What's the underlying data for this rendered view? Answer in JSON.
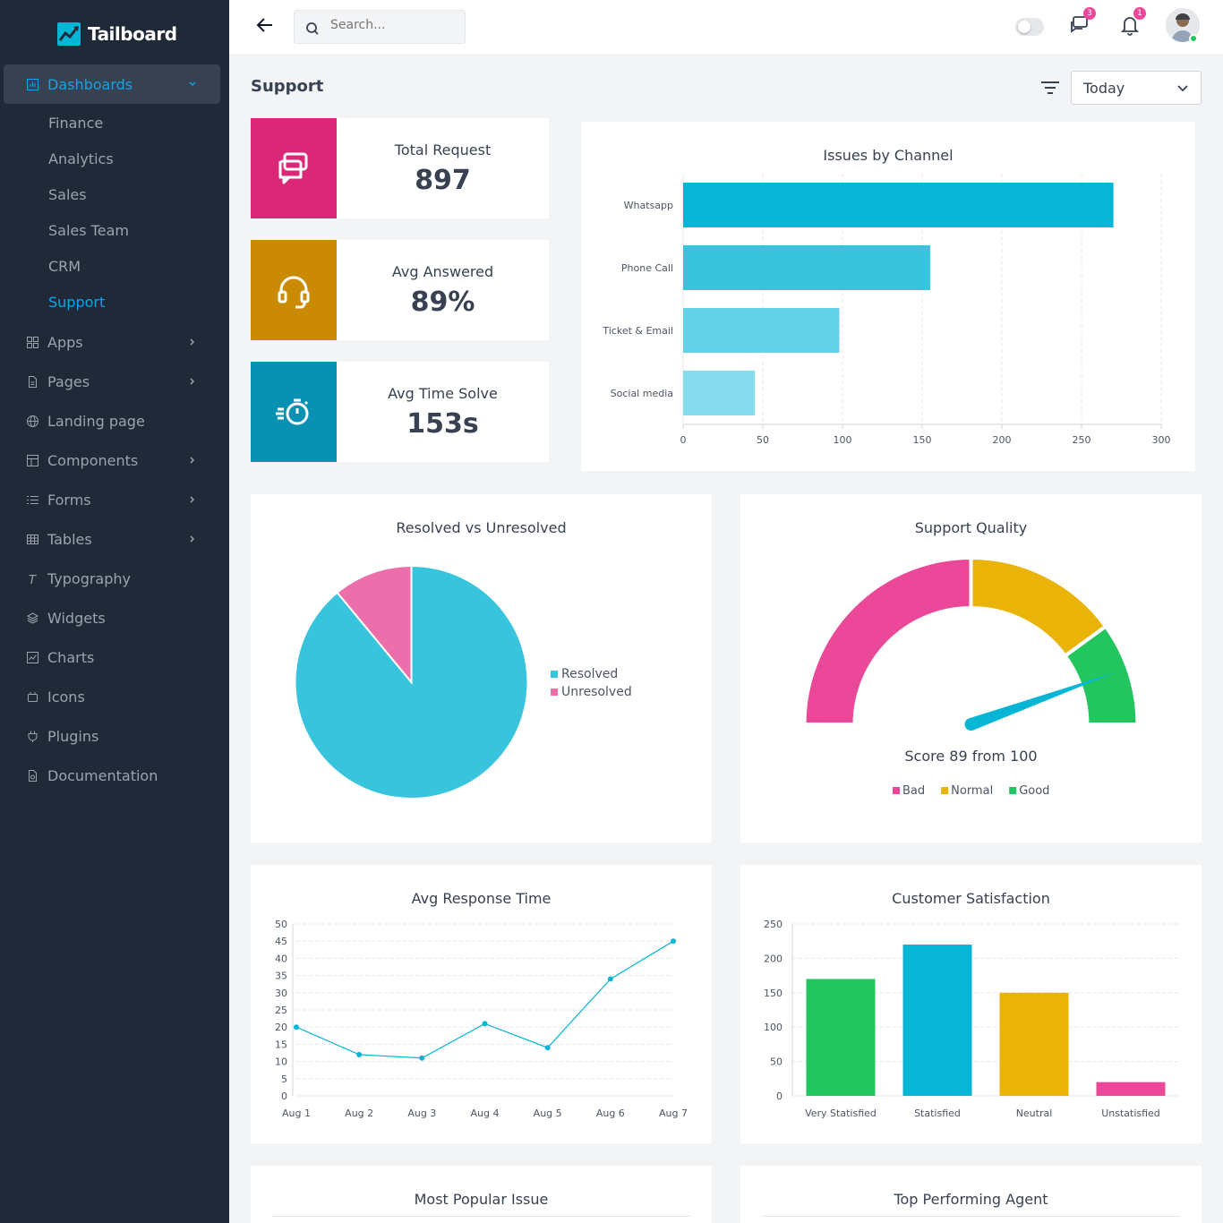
{
  "app": {
    "name": "Tailboard"
  },
  "sidebar": {
    "dashboards_label": "Dashboards",
    "sub_items": [
      "Finance",
      "Analytics",
      "Sales",
      "Sales Team",
      "CRM",
      "Support"
    ],
    "items": [
      {
        "label": "Apps",
        "icon": "grid-icon",
        "chevron": true
      },
      {
        "label": "Pages",
        "icon": "file-icon",
        "chevron": true
      },
      {
        "label": "Landing page",
        "icon": "globe-icon",
        "chevron": false
      },
      {
        "label": "Components",
        "icon": "layout-icon",
        "chevron": true
      },
      {
        "label": "Forms",
        "icon": "list-icon",
        "chevron": true
      },
      {
        "label": "Tables",
        "icon": "table-icon",
        "chevron": true
      },
      {
        "label": "Typography",
        "icon": "typography-icon",
        "chevron": false
      },
      {
        "label": "Widgets",
        "icon": "layers-icon",
        "chevron": false
      },
      {
        "label": "Charts",
        "icon": "chart-icon",
        "chevron": false
      },
      {
        "label": "Icons",
        "icon": "icons-icon",
        "chevron": false
      },
      {
        "label": "Plugins",
        "icon": "plug-icon",
        "chevron": false
      },
      {
        "label": "Documentation",
        "icon": "doc-icon",
        "chevron": false
      }
    ]
  },
  "topbar": {
    "search_placeholder": "Search...",
    "messages_count": "3",
    "notifications_count": "1"
  },
  "page": {
    "title": "Support",
    "date_filter": "Today"
  },
  "stats": [
    {
      "label": "Total Request",
      "value": "897",
      "color": "#db2777"
    },
    {
      "label": "Avg Answered",
      "value": "89%",
      "color": "#ca8a04"
    },
    {
      "label": "Avg Time Solve",
      "value": "153s",
      "color": "#0891b2"
    }
  ],
  "chart_data": [
    {
      "type": "bar",
      "orientation": "horizontal",
      "title": "Issues by Channel",
      "categories": [
        "Whatsapp",
        "Phone Call",
        "Ticket & Email",
        "Social media"
      ],
      "values": [
        270,
        155,
        98,
        45
      ],
      "xlim": [
        0,
        300
      ],
      "xticks": [
        0,
        50,
        100,
        150,
        200,
        250,
        300
      ],
      "colors": [
        "#06b6d4",
        "#38c4dc",
        "#62d2e6",
        "#86dcec"
      ]
    },
    {
      "type": "pie",
      "title": "Resolved vs Unresolved",
      "labels": [
        "Resolved",
        "Unresolved"
      ],
      "values": [
        89,
        11
      ],
      "colors": [
        "#38c4dc",
        "#ec6fac"
      ]
    },
    {
      "type": "gauge",
      "title": "Support Quality",
      "score_text": "Score 89 from 100",
      "value": 89,
      "max": 100,
      "bands": [
        {
          "name": "Bad",
          "from": 0,
          "to": 50,
          "color": "#ec4899"
        },
        {
          "name": "Normal",
          "from": 50,
          "to": 80,
          "color": "#eab308"
        },
        {
          "name": "Good",
          "from": 80,
          "to": 100,
          "color": "#22c55e"
        }
      ]
    },
    {
      "type": "line",
      "title": "Avg Response Time",
      "categories": [
        "Aug 1",
        "Aug 2",
        "Aug 3",
        "Aug 4",
        "Aug 5",
        "Aug 6",
        "Aug 7"
      ],
      "values": [
        20,
        12,
        11,
        21,
        14,
        34,
        45
      ],
      "ylim": [
        0,
        50
      ],
      "yticks": [
        0,
        5,
        10,
        15,
        20,
        25,
        30,
        35,
        40,
        45,
        50
      ],
      "color": "#06b6d4"
    },
    {
      "type": "bar",
      "title": "Customer Satisfaction",
      "categories": [
        "Very Statisfied",
        "Statisfied",
        "Neutral",
        "Unstatisfied"
      ],
      "values": [
        170,
        220,
        150,
        20
      ],
      "ylim": [
        0,
        250
      ],
      "yticks": [
        0,
        50,
        100,
        150,
        200,
        250
      ],
      "colors": [
        "#22c55e",
        "#06b6d4",
        "#eab308",
        "#ec4899"
      ]
    }
  ],
  "bottom_cards": {
    "popular_issue": "Most Popular Issue",
    "top_agent": "Top Performing Agent"
  }
}
